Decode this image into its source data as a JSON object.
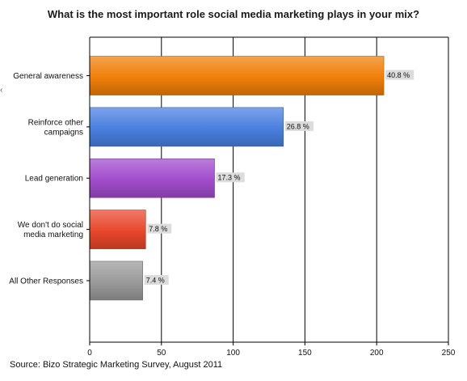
{
  "chart_data": {
    "type": "bar",
    "orientation": "horizontal",
    "title": "What is the most important role social media marketing plays in your mix?",
    "categories": [
      [
        "General awareness"
      ],
      [
        "Reinforce other",
        "campaigns"
      ],
      [
        "Lead generation"
      ],
      [
        "We don't do social",
        "media marketing"
      ],
      [
        "All Other Responses"
      ]
    ],
    "values": [
      205,
      135,
      87,
      39,
      37
    ],
    "data_labels": [
      "40.8 %",
      "26.8 %",
      "17.3 %",
      "7.8 %",
      "7.4 %"
    ],
    "colors": [
      "#f07f09",
      "#4a7fe0",
      "#a14ccc",
      "#e8472c",
      "#9a9a9a"
    ],
    "xlim": [
      0,
      250
    ],
    "xticks": [
      0,
      50,
      100,
      150,
      200,
      250
    ],
    "xlabel": "",
    "ylabel": "",
    "grid": true,
    "legend": "none",
    "source": "Source: Bizo Strategic Marketing Survey, August 2011"
  }
}
